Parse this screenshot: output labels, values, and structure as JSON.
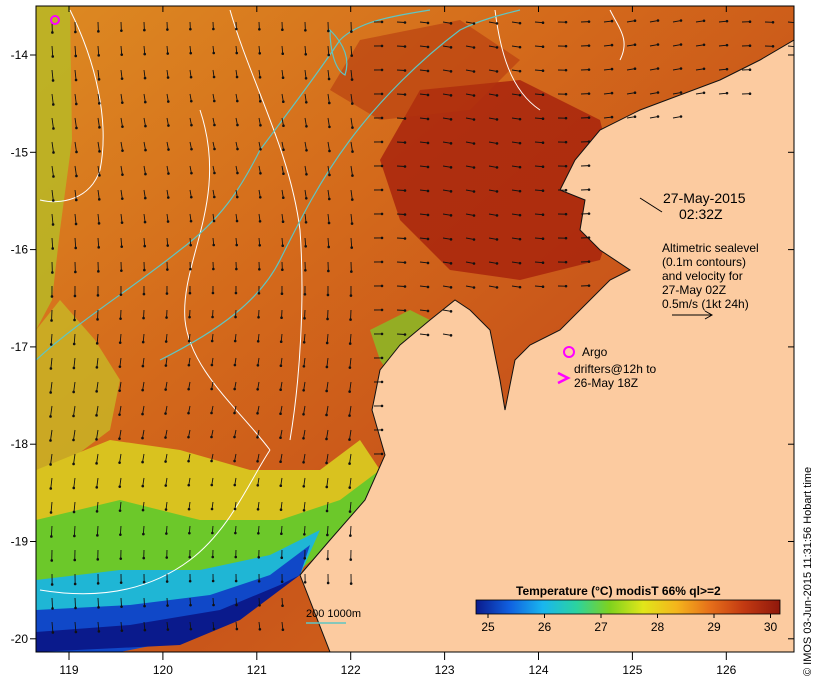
{
  "map": {
    "lon_ticks": [
      "119",
      "120",
      "121",
      "122",
      "123",
      "124",
      "125",
      "126"
    ],
    "lat_ticks": [
      "-14",
      "-15",
      "-16",
      "-17",
      "-18",
      "-19",
      "-20"
    ],
    "colors": {
      "land": "#fccba0",
      "sea_warm": "#d9691c",
      "sea_hot": "#a8240d",
      "sea_mid": "#e99a1f",
      "contour_white": "#ffffff",
      "isobath": "#5fc6c3",
      "argo": "#ff00ff"
    }
  },
  "annotations": {
    "date_line1": "27-May-2015",
    "date_line2": "02:32Z",
    "alt_line1": "Altimetric sealevel",
    "alt_line2": "(0.1m contours)",
    "alt_line3": "and velocity for",
    "alt_line4": "27-May 02Z",
    "alt_line5": "0.5m/s (1kt 24h)",
    "argo_label": "Argo",
    "drifters_line1": "drifters@12h to",
    "drifters_line2": "26-May 18Z",
    "isobath_label": "200  1000m",
    "side_credit": "© IMOS 03-Jun-2015 11:31:56 Hobart time"
  },
  "colorbar": {
    "title": "Temperature (°C) modisT 66% ql>=2",
    "ticks": [
      "25",
      "26",
      "27",
      "28",
      "29",
      "30"
    ],
    "stops": [
      "#0a1a8c",
      "#1060e0",
      "#19b6ee",
      "#2bd3a0",
      "#7fd21e",
      "#e1e61a",
      "#f4b51c",
      "#e66f1a",
      "#c33a12",
      "#8f180c"
    ]
  }
}
